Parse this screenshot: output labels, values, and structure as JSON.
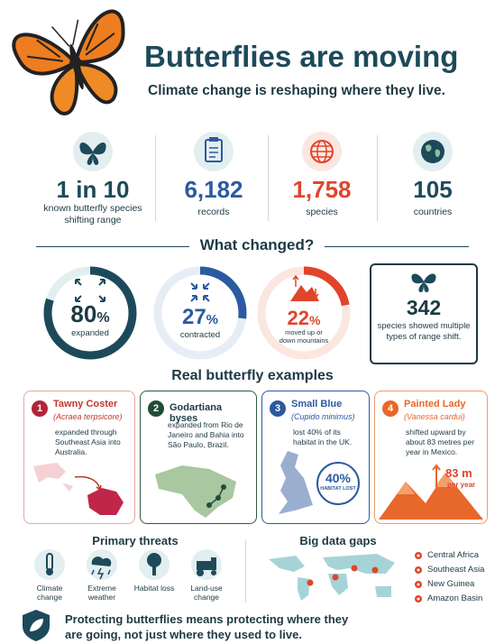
{
  "header": {
    "title": "Butterflies are moving",
    "subtitle": "Climate change is reshaping where they live."
  },
  "stats": [
    {
      "value": "1 in 10",
      "label": "known butterfly species shifting range"
    },
    {
      "value": "6,182",
      "label": "records"
    },
    {
      "value": "1,758",
      "label": "species"
    },
    {
      "value": "105",
      "label": "countries"
    }
  ],
  "changed": {
    "title": "What changed?",
    "rings": [
      {
        "value": 80,
        "unit": "%",
        "label": "expanded"
      },
      {
        "value": 27,
        "unit": "%",
        "label": "contracted"
      },
      {
        "value": 22,
        "unit": "%",
        "label": "moved up or down mountains"
      }
    ],
    "box": {
      "value": "342",
      "label": "species showed multiple types of range shift."
    }
  },
  "examples": {
    "title": "Real butterfly examples",
    "cards": [
      {
        "number": "1",
        "name": "Tawny Coster",
        "latin": "(Acraea terpsicore)",
        "text": "expanded through Southeast Asia into Australia."
      },
      {
        "number": "2",
        "name": "Godartiana byses",
        "text": "expanded from Rio de Janeiro and Bahia into São Paulo, Brazil."
      },
      {
        "number": "3",
        "name": "Small Blue",
        "latin": "(Cupido minimus)",
        "text": "lost 40% of its habitat in the UK.",
        "badge_value": "40%",
        "badge_label": "HABITAT LOST"
      },
      {
        "number": "4",
        "name": "Painted Lady",
        "latin": "(Vanessa cardui)",
        "text": "shifted upward by about 83 metres per year in Mexico.",
        "badge_value": "83 m",
        "badge_label": "per year"
      }
    ]
  },
  "threats": {
    "title": "Primary threats",
    "items": [
      "Climate change",
      "Extreme weather",
      "Habitat loss",
      "Land-use change"
    ]
  },
  "gaps": {
    "title": "Big data gaps",
    "items": [
      "Central Africa",
      "Southeast Asia",
      "New Guinea",
      "Amazon Basin"
    ]
  },
  "footer": {
    "text": "Protecting butterflies means protecting where they are going, not just where they used to live."
  }
}
